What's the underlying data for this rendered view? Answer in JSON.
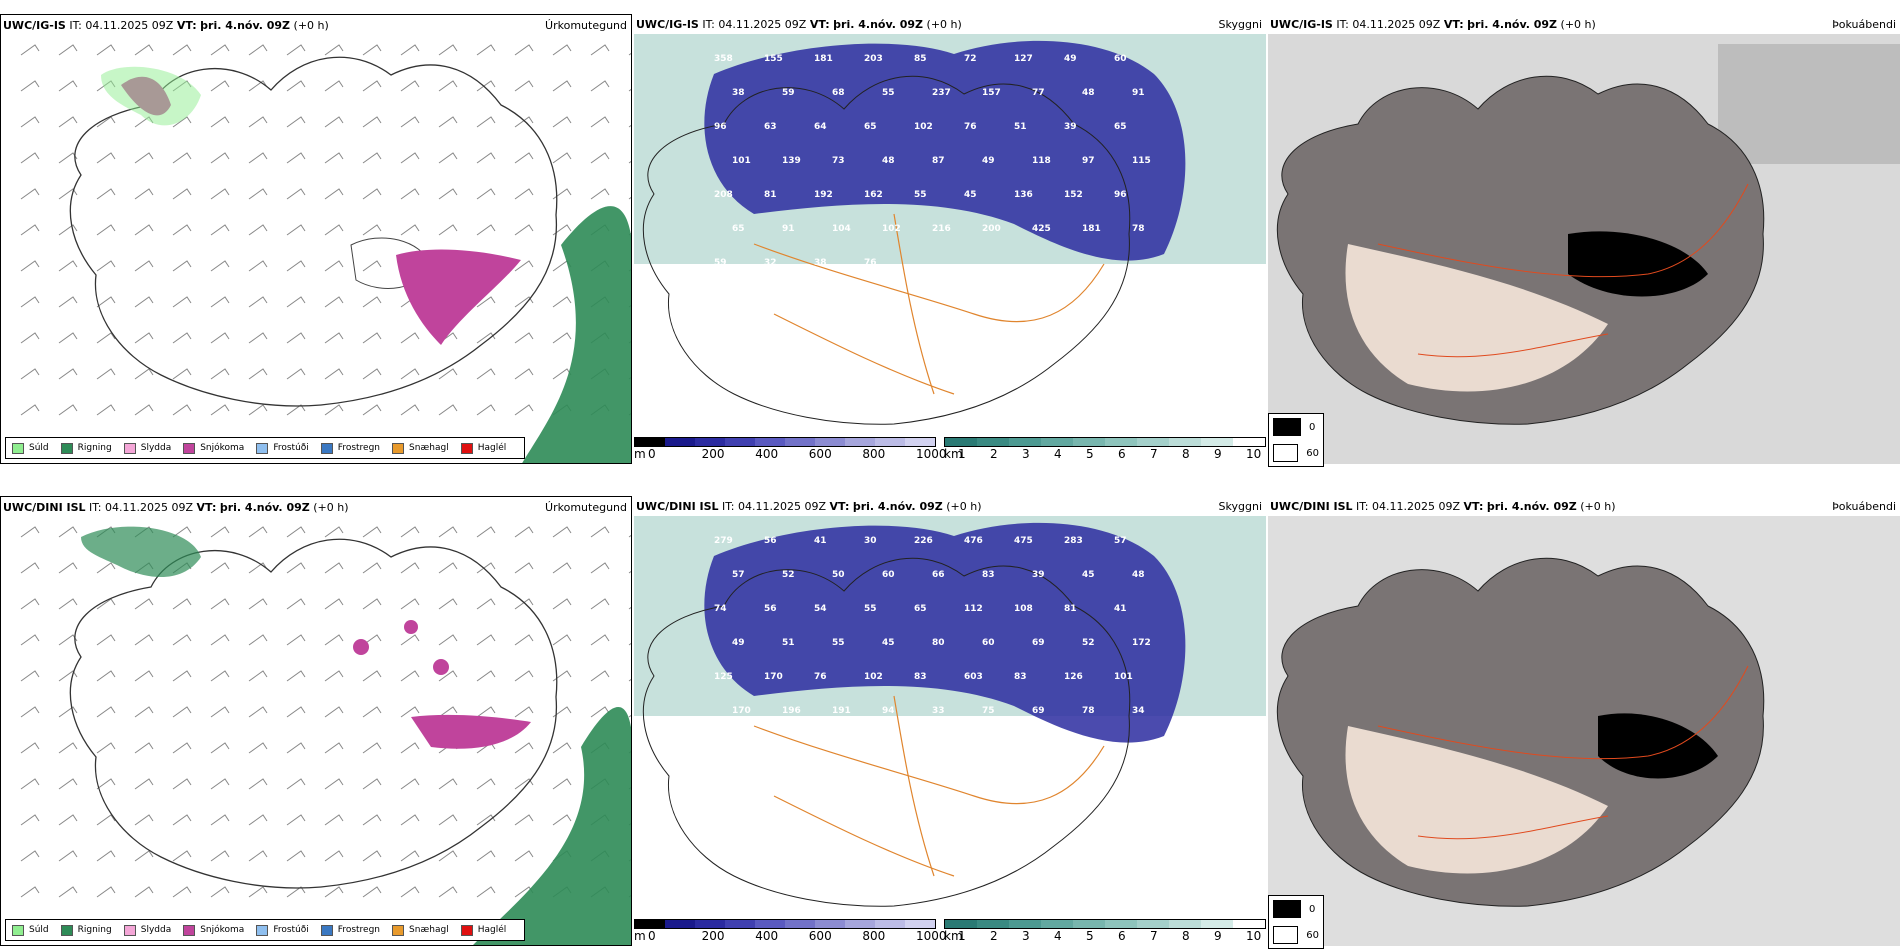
{
  "rows": [
    {
      "model": "UWC/IG-IS",
      "it_label": "IT:",
      "it_value": "04.11.2025 09Z",
      "vt_label": "VT:",
      "vt_value": "þri. 4.nóv. 09Z",
      "offset": "(+0 h)",
      "cloud_numbers": [
        "358",
        "155",
        "181",
        "203",
        "85",
        "72",
        "127",
        "49",
        "60",
        "38",
        "59",
        "68",
        "55",
        "237",
        "157",
        "77",
        "48",
        "91",
        "96",
        "63",
        "64",
        "65",
        "102",
        "76",
        "51",
        "39",
        "65",
        "101",
        "139",
        "73",
        "48",
        "87",
        "49",
        "118",
        "97",
        "115",
        "208",
        "81",
        "192",
        "162",
        "55",
        "45",
        "136",
        "152",
        "96",
        "65",
        "91",
        "104",
        "102",
        "216",
        "200",
        "425",
        "181",
        "78",
        "59",
        "32",
        "38",
        "76"
      ]
    },
    {
      "model": "UWC/DINI ISL",
      "it_label": "IT:",
      "it_value": "04.11.2025 09Z",
      "vt_label": "VT:",
      "vt_value": "þri. 4.nóv. 09Z",
      "offset": "(+0 h)",
      "cloud_numbers": [
        "279",
        "56",
        "41",
        "30",
        "226",
        "476",
        "475",
        "283",
        "57",
        "57",
        "52",
        "50",
        "60",
        "66",
        "83",
        "39",
        "45",
        "48",
        "74",
        "56",
        "54",
        "55",
        "65",
        "112",
        "108",
        "81",
        "41",
        "49",
        "51",
        "55",
        "45",
        "80",
        "60",
        "69",
        "52",
        "172",
        "125",
        "170",
        "76",
        "102",
        "83",
        "603",
        "83",
        "126",
        "101",
        "170",
        "196",
        "191",
        "94",
        "33",
        "75",
        "69",
        "78",
        "34"
      ]
    }
  ],
  "panels": {
    "precip": {
      "title": "Úrkomutegund",
      "legend": [
        {
          "label": "Súld",
          "color": "#90ee90"
        },
        {
          "label": "Rigning",
          "color": "#2e8b57"
        },
        {
          "label": "Slydda",
          "color": "#f4a6d7"
        },
        {
          "label": "Snjókoma",
          "color": "#c0449c"
        },
        {
          "label": "Frostúði",
          "color": "#8fbfef"
        },
        {
          "label": "Frostregn",
          "color": "#3a78c2"
        },
        {
          "label": "Snæhagl",
          "color": "#e89a2c"
        },
        {
          "label": "Haglél",
          "color": "#e01010"
        }
      ]
    },
    "visibility": {
      "title": "Skyggni",
      "cloudbase_unit": "m",
      "cloudbase_ticks": [
        "0",
        "200",
        "400",
        "600",
        "800",
        "1000"
      ],
      "visibility_unit": "km",
      "visibility_ticks": [
        "1",
        "2",
        "3",
        "4",
        "5",
        "6",
        "7",
        "8",
        "9",
        "10"
      ],
      "cloudbase_colors": [
        "#000000",
        "#1a1a8c",
        "#2b2ba0",
        "#4040b0",
        "#5a5ac0",
        "#7272c8",
        "#8c8cd2",
        "#a6a6dc",
        "#bcbce6",
        "#d2d2f0"
      ],
      "visibility_colors": [
        "#2a7a74",
        "#3a8a82",
        "#4d9a92",
        "#62a8a0",
        "#78b6ae",
        "#8ec4bc",
        "#a4d0ca",
        "#bcddd8",
        "#d4ebe7",
        "#ffffff"
      ]
    },
    "fog": {
      "title": "Þokuábendi",
      "legend": [
        {
          "label": "0",
          "color": "#000000"
        },
        {
          "label": "60",
          "color": "#ffffff"
        }
      ]
    }
  }
}
